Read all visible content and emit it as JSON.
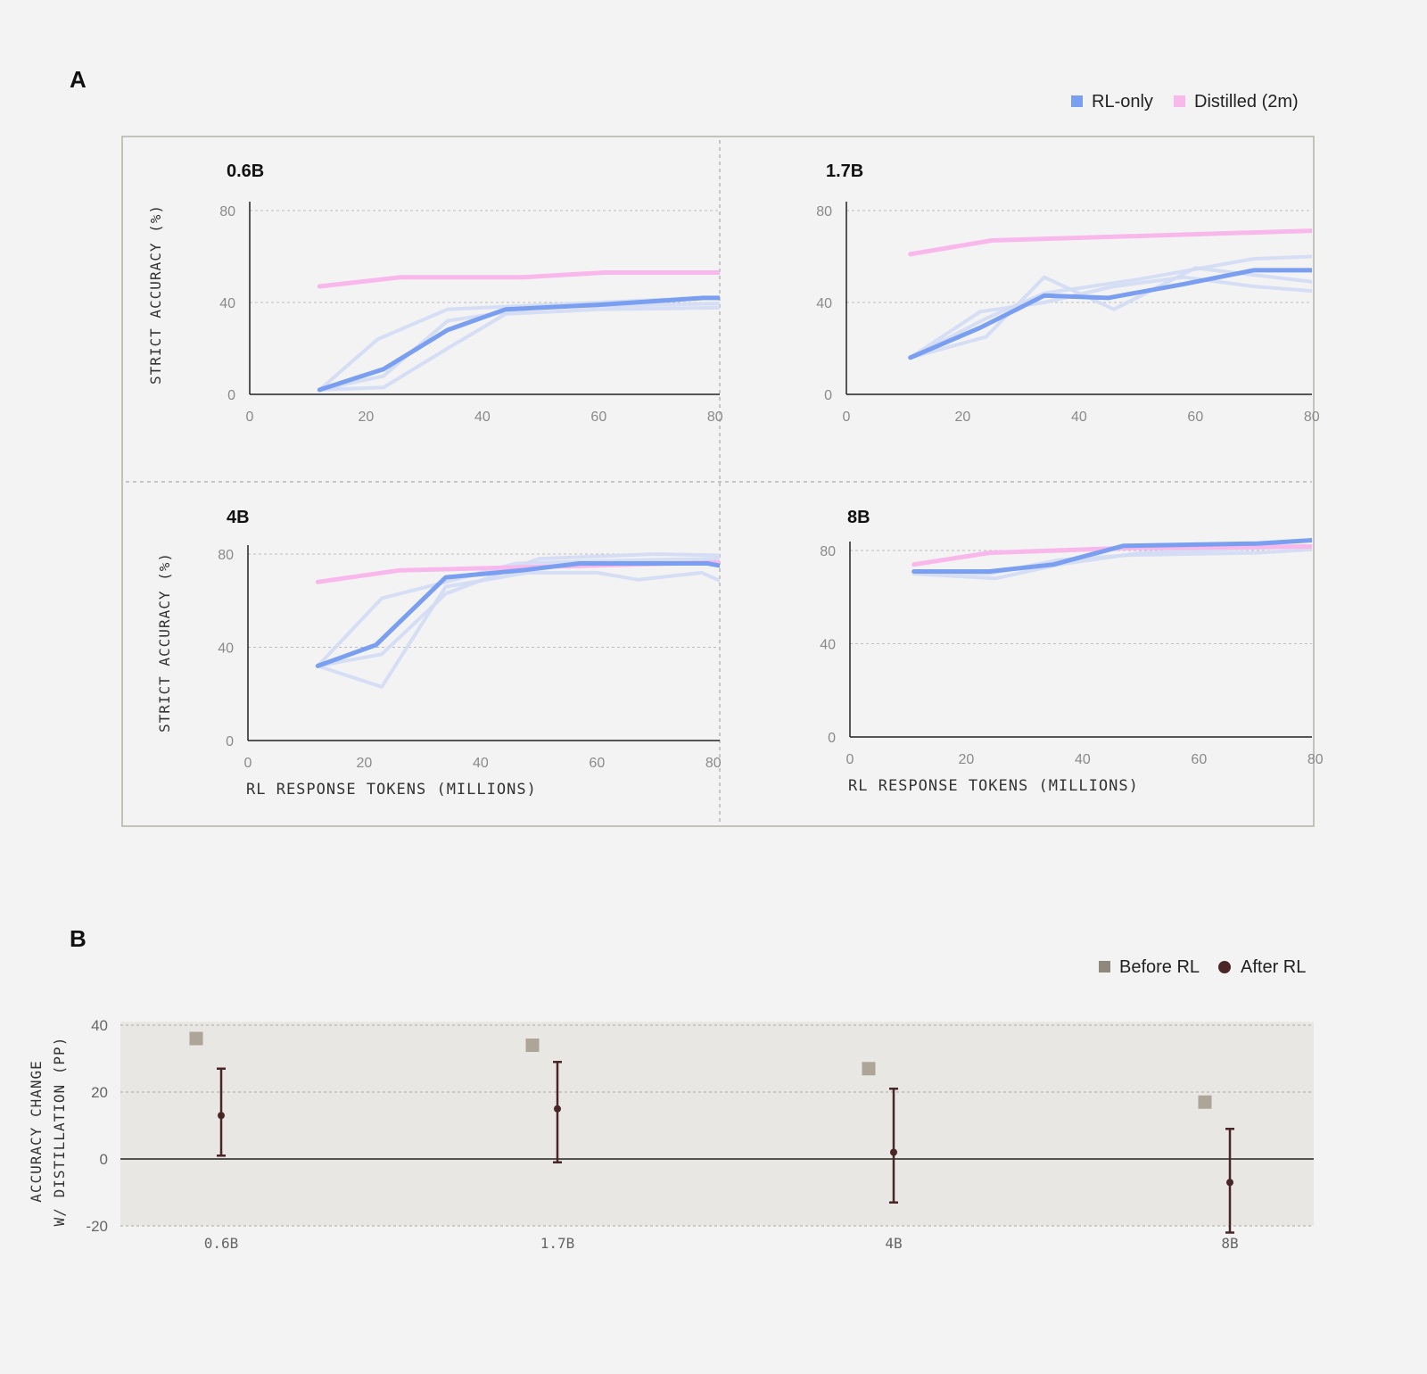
{
  "panel_a": {
    "label": "A",
    "legend": [
      {
        "label": "RL-only",
        "color": "#7a9ff0"
      },
      {
        "label": "Distilled (2m)",
        "color": "#f9b8ec"
      }
    ]
  },
  "panel_b": {
    "label": "B",
    "legend": [
      {
        "label": "Before RL",
        "color": "#8f887c"
      },
      {
        "label": "After RL",
        "color": "#4a2626"
      }
    ]
  },
  "colors": {
    "rl_main": "#7a9ff0",
    "rl_faint": "#d3dcf5",
    "distilled": "#f9b8ec",
    "before_rl": "#aca598",
    "after_rl": "#4a2626",
    "panel_b_bg": "#e8e7e3"
  },
  "chart_data": [
    {
      "type": "line",
      "title": "0.6B",
      "ylabel": "STRICT ACCURACY (%)",
      "xlabel": "",
      "xlim": [
        0,
        90
      ],
      "ylim": [
        0,
        84
      ],
      "xticks": [
        "0",
        "20",
        "40",
        "60",
        "80"
      ],
      "yticks": [
        "0",
        "40",
        "80"
      ],
      "grid": true,
      "series": [
        {
          "name": "Distilled (2m)",
          "role": "distilled",
          "points": [
            [
              12,
              47
            ],
            [
              26,
              51
            ],
            [
              47,
              51
            ],
            [
              61,
              53
            ],
            [
              90,
              53
            ]
          ]
        },
        {
          "name": "RL-only",
          "role": "main",
          "points": [
            [
              12,
              2
            ],
            [
              23,
              11
            ],
            [
              34,
              28
            ],
            [
              44,
              37
            ],
            [
              60,
              39
            ],
            [
              78,
              42
            ],
            [
              90,
              42
            ]
          ]
        },
        {
          "role": "faint",
          "points": [
            [
              12,
              2
            ],
            [
              22,
              24
            ],
            [
              34,
              37
            ],
            [
              60,
              40
            ],
            [
              78,
              42
            ],
            [
              90,
              42
            ]
          ]
        },
        {
          "role": "faint",
          "points": [
            [
              12,
              2
            ],
            [
              23,
              3
            ],
            [
              34,
              20
            ],
            [
              44,
              35
            ],
            [
              60,
              37
            ],
            [
              90,
              38
            ]
          ]
        },
        {
          "role": "faint",
          "points": [
            [
              12,
              2
            ],
            [
              23,
              8
            ],
            [
              34,
              32
            ],
            [
              50,
              38
            ],
            [
              70,
              39
            ],
            [
              90,
              40
            ]
          ]
        }
      ]
    },
    {
      "type": "line",
      "title": "1.7B",
      "ylabel": "",
      "xlabel": "",
      "xlim": [
        0,
        90
      ],
      "ylim": [
        0,
        84
      ],
      "xticks": [
        "0",
        "20",
        "40",
        "60",
        "80"
      ],
      "yticks": [
        "0",
        "40",
        "80"
      ],
      "grid": true,
      "series": [
        {
          "name": "Distilled (2m)",
          "role": "distilled",
          "points": [
            [
              11,
              61
            ],
            [
              25,
              67
            ],
            [
              90,
              72
            ]
          ]
        },
        {
          "name": "RL-only",
          "role": "main",
          "points": [
            [
              11,
              16
            ],
            [
              23,
              29
            ],
            [
              34,
              43
            ],
            [
              45,
              42
            ],
            [
              58,
              48
            ],
            [
              70,
              54
            ],
            [
              90,
              54
            ]
          ]
        },
        {
          "role": "faint",
          "points": [
            [
              11,
              16
            ],
            [
              23,
              36
            ],
            [
              34,
              40
            ],
            [
              46,
              47
            ],
            [
              58,
              51
            ],
            [
              70,
              47
            ],
            [
              90,
              43
            ]
          ]
        },
        {
          "role": "faint",
          "points": [
            [
              11,
              16
            ],
            [
              24,
              25
            ],
            [
              34,
              51
            ],
            [
              46,
              37
            ],
            [
              60,
              55
            ],
            [
              80,
              49
            ],
            [
              90,
              46
            ]
          ]
        },
        {
          "role": "faint",
          "points": [
            [
              11,
              16
            ],
            [
              24,
              33
            ],
            [
              34,
              44
            ],
            [
              50,
              50
            ],
            [
              70,
              59
            ],
            [
              90,
              61
            ]
          ]
        }
      ]
    },
    {
      "type": "line",
      "title": "4B",
      "ylabel": "STRICT ACCURACY (%)",
      "xlabel": "RL RESPONSE TOKENS (MILLIONS)",
      "xlim": [
        0,
        90
      ],
      "ylim": [
        0,
        84
      ],
      "xticks": [
        "0",
        "20",
        "40",
        "60",
        "80"
      ],
      "yticks": [
        "0",
        "40",
        "80"
      ],
      "grid": true,
      "series": [
        {
          "name": "Distilled (2m)",
          "role": "distilled",
          "points": [
            [
              12,
              68
            ],
            [
              26,
              73
            ],
            [
              90,
              77
            ]
          ]
        },
        {
          "name": "RL-only",
          "role": "main",
          "points": [
            [
              12,
              32
            ],
            [
              22,
              41
            ],
            [
              34,
              70
            ],
            [
              47,
              73
            ],
            [
              57,
              76
            ],
            [
              79,
              76
            ],
            [
              90,
              71
            ]
          ]
        },
        {
          "role": "faint",
          "points": [
            [
              12,
              32
            ],
            [
              23,
              61
            ],
            [
              34,
              68
            ],
            [
              46,
              76
            ],
            [
              60,
              77
            ],
            [
              80,
              78
            ],
            [
              90,
              82
            ]
          ]
        },
        {
          "role": "faint",
          "points": [
            [
              12,
              32
            ],
            [
              23,
              23
            ],
            [
              34,
              66
            ],
            [
              48,
              72
            ],
            [
              60,
              72
            ],
            [
              67,
              69
            ],
            [
              78,
              72
            ],
            [
              90,
              59
            ]
          ]
        },
        {
          "role": "faint",
          "points": [
            [
              12,
              32
            ],
            [
              23,
              37
            ],
            [
              34,
              63
            ],
            [
              50,
              78
            ],
            [
              70,
              80
            ],
            [
              90,
              79
            ]
          ]
        }
      ]
    },
    {
      "type": "line",
      "title": "8B",
      "ylabel": "",
      "xlabel": "RL RESPONSE TOKENS (MILLIONS)",
      "xlim": [
        0,
        90
      ],
      "ylim": [
        0,
        84
      ],
      "xticks": [
        "0",
        "20",
        "40",
        "60",
        "80"
      ],
      "yticks": [
        "0",
        "40",
        "80"
      ],
      "grid": true,
      "series": [
        {
          "name": "Distilled (2m)",
          "role": "distilled",
          "points": [
            [
              11,
              74
            ],
            [
              24,
              79
            ],
            [
              47,
              81
            ],
            [
              90,
              82
            ]
          ]
        },
        {
          "name": "RL-only",
          "role": "main",
          "points": [
            [
              11,
              71
            ],
            [
              24,
              71
            ],
            [
              35,
              74
            ],
            [
              47,
              82
            ],
            [
              70,
              83
            ],
            [
              90,
              86
            ]
          ]
        },
        {
          "role": "faint",
          "points": [
            [
              11,
              71
            ],
            [
              24,
              70
            ],
            [
              36,
              76
            ],
            [
              48,
              78
            ],
            [
              70,
              79
            ],
            [
              90,
              82
            ]
          ]
        },
        {
          "role": "faint",
          "points": [
            [
              11,
              70
            ],
            [
              25,
              68
            ],
            [
              36,
              74
            ],
            [
              50,
              79
            ],
            [
              70,
              81
            ],
            [
              90,
              83
            ]
          ]
        }
      ]
    },
    {
      "type": "scatter",
      "title": "",
      "ylabel": "ACCURACY CHANGE W/ DISTILLATION (PP)",
      "xlabel": "",
      "categories": [
        "0.6B",
        "1.7B",
        "4B",
        "8B"
      ],
      "ylim": [
        -22,
        44
      ],
      "yticks": [
        "-20",
        "0",
        "20",
        "40"
      ],
      "grid": true,
      "series": [
        {
          "name": "Before RL",
          "values": [
            36,
            34,
            27,
            17
          ]
        },
        {
          "name": "After RL",
          "values": [
            13,
            15,
            2,
            -7
          ],
          "ci_low": [
            1,
            -1,
            -13,
            -22
          ],
          "ci_high": [
            27,
            29,
            21,
            9
          ]
        }
      ]
    }
  ]
}
